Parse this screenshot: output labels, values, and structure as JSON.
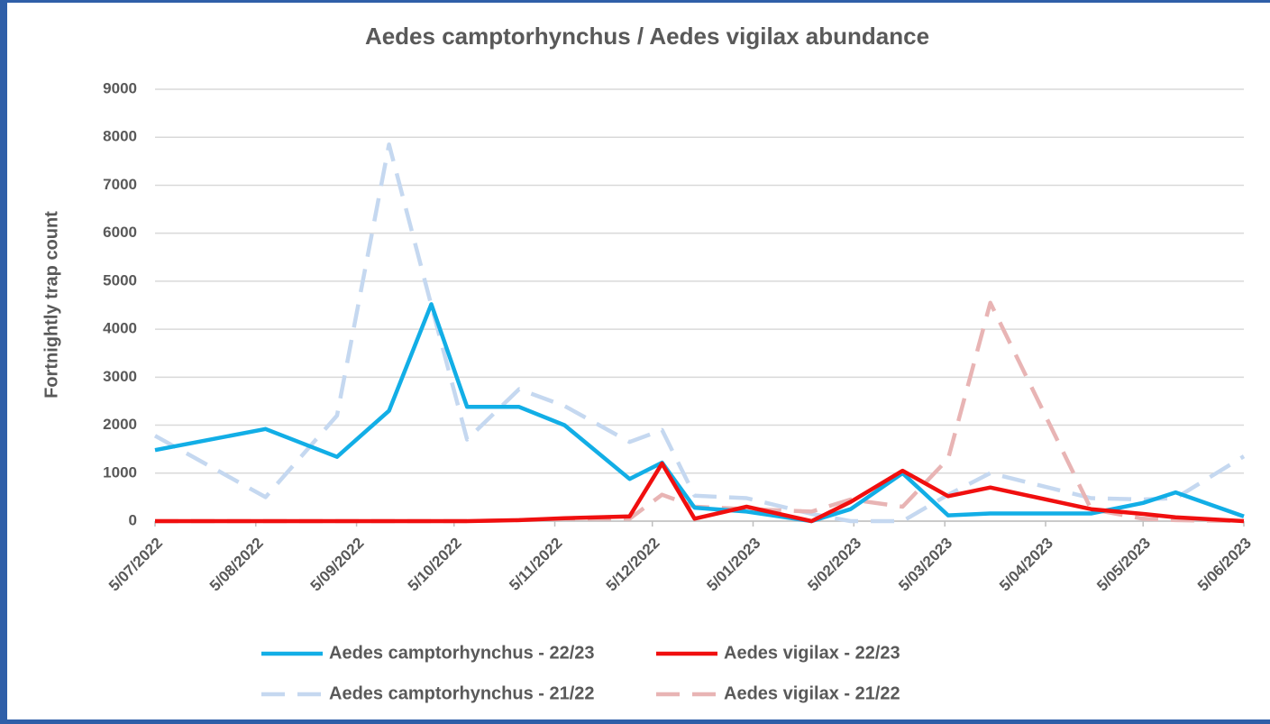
{
  "chart_data": {
    "type": "line",
    "title": "Aedes camptorhynchus  / Aedes vigilax abundance",
    "y_label": "Fortnightly trap count",
    "x": [
      "5/07/2022",
      "8/08/2022",
      "30/08/2022",
      "15/09/2022",
      "28/09/2022",
      "9/10/2022",
      "25/10/2022",
      "8/11/2022",
      "28/11/2022",
      "8/12/2022",
      "18/12/2022",
      "3/01/2023",
      "23/01/2023",
      "4/02/2023",
      "20/02/2023",
      "6/03/2023",
      "19/03/2023",
      "19/04/2023",
      "5/05/2023",
      "15/05/2023",
      "5/06/2023"
    ],
    "xlim": [
      "5/07/2022",
      "5/06/2023"
    ],
    "xticks": [
      "5/07/2022",
      "5/08/2022",
      "5/09/2022",
      "5/10/2022",
      "5/11/2022",
      "5/12/2022",
      "5/01/2023",
      "5/02/2023",
      "5/03/2023",
      "5/04/2023",
      "5/05/2023",
      "5/06/2023"
    ],
    "ylim": [
      0,
      9000
    ],
    "yticks": [
      0,
      1000,
      2000,
      3000,
      4000,
      5000,
      6000,
      7000,
      8000,
      9000
    ],
    "grid": true,
    "legend": "bottom",
    "series": [
      {
        "name": "Aedes camptorhynchus - 22/23",
        "color": "#12aee6",
        "dashed": false,
        "values": [
          1480,
          1920,
          1340,
          2300,
          4520,
          2380,
          2380,
          2000,
          880,
          1220,
          280,
          200,
          0,
          250,
          1000,
          120,
          160,
          160,
          380,
          600,
          100
        ]
      },
      {
        "name": "Aedes vigilax - 22/23",
        "color": "#f00f0f",
        "dashed": false,
        "values": [
          0,
          0,
          0,
          0,
          0,
          0,
          20,
          60,
          100,
          1200,
          50,
          300,
          0,
          400,
          1050,
          520,
          700,
          250,
          150,
          80,
          0
        ]
      },
      {
        "name": "Aedes camptorhynchus - 21/22",
        "color": "#c5d8f0",
        "dashed": true,
        "values": [
          1780,
          500,
          2200,
          7850,
          4500,
          1700,
          2750,
          2400,
          1650,
          1900,
          530,
          480,
          150,
          0,
          0,
          550,
          1000,
          480,
          450,
          480,
          1350
        ]
      },
      {
        "name": "Aedes vigilax - 21/22",
        "color": "#e8b4b4",
        "dashed": true,
        "values": [
          0,
          0,
          0,
          0,
          0,
          0,
          20,
          50,
          50,
          550,
          300,
          250,
          200,
          450,
          300,
          1300,
          4550,
          250,
          50,
          20,
          0
        ]
      }
    ]
  }
}
